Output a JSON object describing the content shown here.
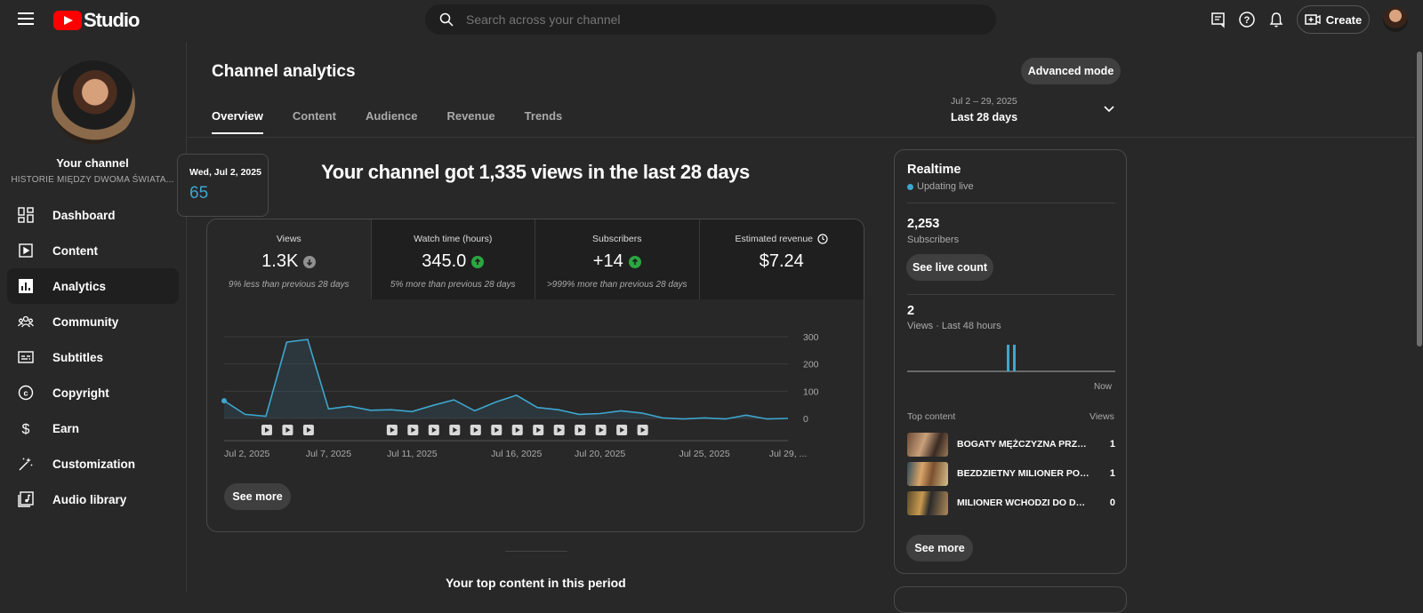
{
  "header": {
    "logo_text": "Studio",
    "search_placeholder": "Search across your channel",
    "create_label": "Create"
  },
  "sidebar": {
    "channel_label": "Your channel",
    "channel_name": "HISTORIE MIĘDZY DWOMA ŚWIATA...",
    "items": [
      {
        "label": "Dashboard",
        "icon": "dashboard-icon"
      },
      {
        "label": "Content",
        "icon": "content-icon"
      },
      {
        "label": "Analytics",
        "icon": "analytics-icon",
        "active": true
      },
      {
        "label": "Community",
        "icon": "community-icon"
      },
      {
        "label": "Subtitles",
        "icon": "subtitles-icon"
      },
      {
        "label": "Copyright",
        "icon": "copyright-icon"
      },
      {
        "label": "Earn",
        "icon": "earn-icon"
      },
      {
        "label": "Customization",
        "icon": "customization-icon"
      },
      {
        "label": "Audio library",
        "icon": "audio-library-icon"
      }
    ]
  },
  "main": {
    "title": "Channel analytics",
    "advanced_mode": "Advanced mode",
    "tabs": [
      "Overview",
      "Content",
      "Audience",
      "Revenue",
      "Trends"
    ],
    "active_tab": "Overview",
    "date_range": {
      "dates": "Jul 2 – 29, 2025",
      "label": "Last 28 days"
    },
    "headline": "Your channel got 1,335 views in the last 28 days",
    "metrics": [
      {
        "label": "Views",
        "value": "1.3K",
        "trend": "down",
        "note": "9% less than previous 28 days"
      },
      {
        "label": "Watch time (hours)",
        "value": "345.0",
        "trend": "up",
        "note": "5% more than previous 28 days"
      },
      {
        "label": "Subscribers",
        "value": "+14",
        "trend": "up",
        "note": ">999% more than previous 28 days"
      },
      {
        "label": "Estimated revenue",
        "value": "$7.24",
        "trend": "none",
        "note": ""
      }
    ],
    "tooltip": {
      "date": "Wed, Jul 2, 2025",
      "value": "65"
    },
    "see_more": "See more",
    "below_heading": "Your top content in this period"
  },
  "chart_data": {
    "type": "area",
    "x_tick_labels": [
      "Jul 2, 2025",
      "Jul 7, 2025",
      "Jul 11, 2025",
      "Jul 16, 2025",
      "Jul 20, 2025",
      "Jul 25, 2025",
      "Jul 29, ..."
    ],
    "ylim": [
      0,
      300
    ],
    "y_ticks": [
      0,
      100,
      200,
      300
    ],
    "series": [
      {
        "values": [
          65,
          15,
          8,
          280,
          290,
          35,
          45,
          30,
          32,
          25,
          48,
          68,
          28,
          60,
          85,
          40,
          32,
          15,
          18,
          28,
          20,
          2,
          -2,
          2,
          -2,
          12,
          -2,
          0
        ],
        "color": "#3ea6cf"
      }
    ],
    "video_markers": [
      2,
      3,
      4,
      8,
      9,
      10,
      11,
      12,
      13,
      14,
      15,
      16,
      17,
      18,
      19,
      20
    ],
    "grid": true
  },
  "realtime": {
    "title": "Realtime",
    "status": "Updating live",
    "subscribers": "2,253",
    "subscribers_label": "Subscribers",
    "see_live_count": "See live count",
    "views": "2",
    "views_label": "Views · Last 48 hours",
    "now_label": "Now",
    "top_content_label": "Top content",
    "views_col_label": "Views",
    "top_content": [
      {
        "title": "BOGATY MĘŻCZYZNA PRZYS...",
        "views": "1"
      },
      {
        "title": "BEZDZIETNY MILIONER POS...",
        "views": "1"
      },
      {
        "title": "MILIONER WCHODZI DO DO...",
        "views": "0"
      }
    ],
    "see_more": "See more",
    "accent": "#3ea6cf"
  }
}
